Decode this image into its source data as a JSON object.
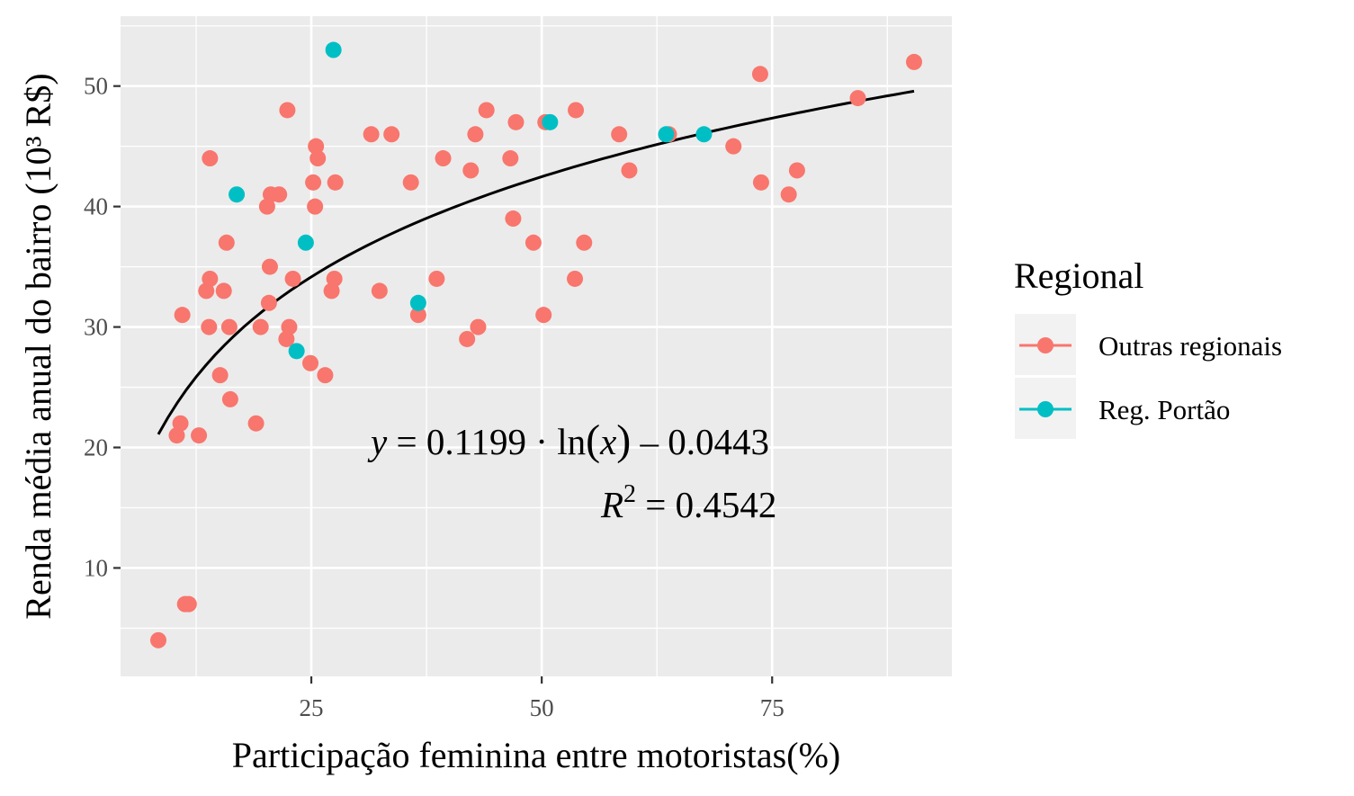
{
  "chart_data": {
    "type": "scatter",
    "xlabel": "Participação feminina entre motoristas(%)",
    "ylabel": "Renda média anual do bairro (10³ R$)",
    "xlim": [
      4.3,
      94.5
    ],
    "ylim": [
      1.0,
      55.8
    ],
    "x_ticks": [
      25,
      50,
      75
    ],
    "x_tick_labels": [
      "25",
      "50",
      "75"
    ],
    "x_minor_ticks": [
      12.5,
      37.5,
      62.5,
      87.5
    ],
    "y_ticks": [
      10,
      20,
      30,
      40,
      50
    ],
    "y_tick_labels": [
      "10",
      "20",
      "30",
      "40",
      "50"
    ],
    "y_minor_ticks": [
      5,
      15,
      25,
      35,
      45,
      55
    ],
    "grid": true,
    "legend": {
      "title": "Regional",
      "position": "right"
    },
    "series": [
      {
        "name": "Outras regionais",
        "color": "#F8766D",
        "points": [
          [
            8.4,
            4
          ],
          [
            11.3,
            7
          ],
          [
            11.7,
            7
          ],
          [
            10.4,
            21
          ],
          [
            12.8,
            21
          ],
          [
            10.8,
            22
          ],
          [
            11.0,
            31
          ],
          [
            13.9,
            30
          ],
          [
            13.6,
            33
          ],
          [
            14.0,
            34
          ],
          [
            15.5,
            33
          ],
          [
            15.1,
            26
          ],
          [
            15.8,
            37
          ],
          [
            16.1,
            30
          ],
          [
            16.2,
            24
          ],
          [
            14.0,
            44
          ],
          [
            19.0,
            22
          ],
          [
            19.5,
            30
          ],
          [
            20.4,
            32
          ],
          [
            20.5,
            35
          ],
          [
            20.2,
            40
          ],
          [
            20.6,
            41
          ],
          [
            21.5,
            41
          ],
          [
            22.4,
            48
          ],
          [
            22.3,
            29
          ],
          [
            22.6,
            30
          ],
          [
            23.0,
            34
          ],
          [
            24.9,
            27
          ],
          [
            25.2,
            42
          ],
          [
            25.4,
            40
          ],
          [
            25.5,
            45
          ],
          [
            25.7,
            44
          ],
          [
            26.5,
            26
          ],
          [
            27.2,
            33
          ],
          [
            27.5,
            34
          ],
          [
            27.6,
            42
          ],
          [
            31.5,
            46
          ],
          [
            32.4,
            33
          ],
          [
            33.7,
            46
          ],
          [
            35.8,
            42
          ],
          [
            36.6,
            31
          ],
          [
            38.6,
            34
          ],
          [
            39.3,
            44
          ],
          [
            41.9,
            29
          ],
          [
            42.3,
            43
          ],
          [
            42.8,
            46
          ],
          [
            43.1,
            30
          ],
          [
            44.0,
            48
          ],
          [
            46.6,
            44
          ],
          [
            46.9,
            39
          ],
          [
            47.2,
            47
          ],
          [
            49.1,
            37
          ],
          [
            50.2,
            31
          ],
          [
            50.4,
            47
          ],
          [
            53.7,
            48
          ],
          [
            53.6,
            34
          ],
          [
            54.6,
            37
          ],
          [
            58.4,
            46
          ],
          [
            59.5,
            43
          ],
          [
            63.8,
            46
          ],
          [
            70.8,
            45
          ],
          [
            73.7,
            51
          ],
          [
            73.8,
            42
          ],
          [
            76.8,
            41
          ],
          [
            77.7,
            43
          ],
          [
            84.3,
            49
          ],
          [
            90.4,
            52
          ]
        ]
      },
      {
        "name": "Reg. Portão",
        "color": "#00BFC4",
        "points": [
          [
            16.9,
            41
          ],
          [
            23.4,
            28
          ],
          [
            24.4,
            37
          ],
          [
            27.4,
            53
          ],
          [
            36.6,
            32
          ],
          [
            50.9,
            47
          ],
          [
            63.5,
            46
          ],
          [
            67.6,
            46
          ]
        ]
      }
    ],
    "trend": {
      "type": "log",
      "color": "#000000",
      "x_from": 8.4,
      "x_to": 90.4,
      "a": 11.99,
      "b": -4.43,
      "equation_text": {
        "y": "y",
        "eq1": " = 0.1199 · ln",
        "lp": "(",
        "x": "x",
        "rp": ")",
        "eq2": " – 0.0443"
      },
      "r2_text": {
        "R": "R",
        "sup": "2",
        "eq": " = 0.4542"
      }
    }
  }
}
